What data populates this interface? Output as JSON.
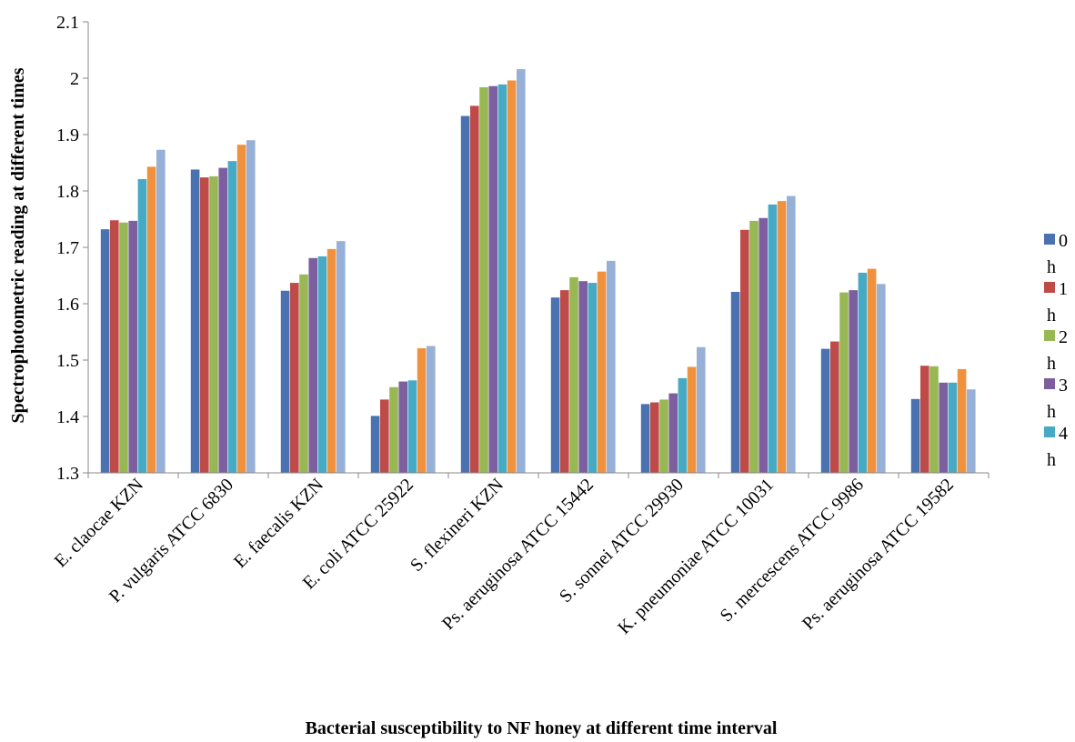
{
  "chart_data": {
    "type": "bar",
    "xlabel": "Bacterial susceptibility to NF honey at different time interval",
    "ylabel": "Spectrophotometric reading at different times",
    "ylim": [
      1.3,
      2.1
    ],
    "yticks": [
      "1.3",
      "1.4",
      "1.5",
      "1.6",
      "1.7",
      "1.8",
      "1.9",
      "2",
      "2.1"
    ],
    "categories": [
      "E. claocae KZN",
      "P. vulgaris  ATCC 6830",
      "E. faecalis KZN",
      "E. coli ATCC 25922",
      "S. flexineri KZN",
      "Ps. aeruginosa ATCC 15442",
      "S. sonnei ATCC 29930",
      "K. pneumoniae ATCC 10031",
      "S. mercescens ATCC 9986",
      "Ps. aeruginosa ATCC 19582"
    ],
    "series": [
      {
        "name": "0 h",
        "color": "#4a72b0",
        "values": [
          1.732,
          1.838,
          1.623,
          1.401,
          1.933,
          1.611,
          1.422,
          1.621,
          1.52,
          1.431
        ]
      },
      {
        "name": "1 h",
        "color": "#be4b48",
        "values": [
          1.748,
          1.824,
          1.637,
          1.43,
          1.951,
          1.624,
          1.425,
          1.731,
          1.533,
          1.49
        ]
      },
      {
        "name": "2 h",
        "color": "#97b853",
        "values": [
          1.744,
          1.826,
          1.652,
          1.452,
          1.984,
          1.647,
          1.43,
          1.747,
          1.62,
          1.489
        ]
      },
      {
        "name": "3 h",
        "color": "#7d5fa0",
        "values": [
          1.747,
          1.841,
          1.681,
          1.462,
          1.986,
          1.64,
          1.441,
          1.752,
          1.624,
          1.46
        ]
      },
      {
        "name": "4 h",
        "color": "#46aac5",
        "values": [
          1.821,
          1.853,
          1.684,
          1.464,
          1.989,
          1.637,
          1.468,
          1.776,
          1.655,
          1.46
        ]
      },
      {
        "color": "#f0913e",
        "values": [
          1.843,
          1.882,
          1.697,
          1.521,
          1.996,
          1.657,
          1.488,
          1.782,
          1.662,
          1.484
        ]
      },
      {
        "color": "#97b0d8",
        "values": [
          1.873,
          1.89,
          1.711,
          1.525,
          2.016,
          1.676,
          1.523,
          1.791,
          1.635,
          1.448
        ]
      }
    ],
    "legend": [
      {
        "num": "0",
        "unit": "h"
      },
      {
        "num": "1",
        "unit": "h"
      },
      {
        "num": "2",
        "unit": "h"
      },
      {
        "num": "3",
        "unit": "h"
      },
      {
        "num": "4",
        "unit": "h"
      }
    ],
    "grid": false,
    "legend_position": "right"
  }
}
